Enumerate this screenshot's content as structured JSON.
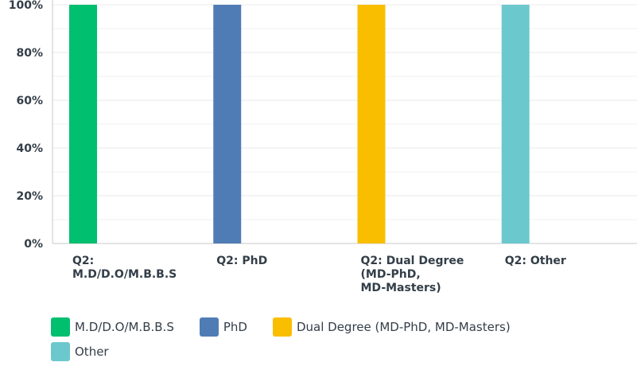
{
  "chart_data": {
    "type": "bar",
    "categories": [
      [
        "Q2:",
        "M.D/D.O/M.B.B.S"
      ],
      [
        "Q2: PhD"
      ],
      [
        "Q2: Dual Degree",
        "(MD-PhD,",
        "MD-Masters)"
      ],
      [
        "Q2: Other"
      ]
    ],
    "series": [
      {
        "name": "M.D/D.O/M.B.B.S",
        "color": "#00bf6f",
        "values": [
          100,
          0,
          0,
          0
        ]
      },
      {
        "name": "PhD",
        "color": "#507cb6",
        "values": [
          0,
          100,
          0,
          0
        ]
      },
      {
        "name": "Dual Degree (MD-PhD, MD-Masters)",
        "color": "#f9be00",
        "values": [
          0,
          0,
          100,
          0
        ]
      },
      {
        "name": "Other",
        "color": "#6bc8cd",
        "values": [
          0,
          0,
          0,
          100
        ]
      }
    ],
    "ylim": [
      0,
      100
    ],
    "yticks": [
      "0%",
      "20%",
      "40%",
      "60%",
      "80%",
      "100%"
    ],
    "grid": true,
    "legend_placement": "bottom"
  },
  "legend": {
    "items": [
      {
        "label": "M.D/D.O/M.B.B.S",
        "color": "#00bf6f"
      },
      {
        "label": "PhD",
        "color": "#507cb6"
      },
      {
        "label": "Dual Degree (MD-PhD, MD-Masters)",
        "color": "#f9be00"
      },
      {
        "label": "Other",
        "color": "#6bc8cd"
      }
    ]
  }
}
